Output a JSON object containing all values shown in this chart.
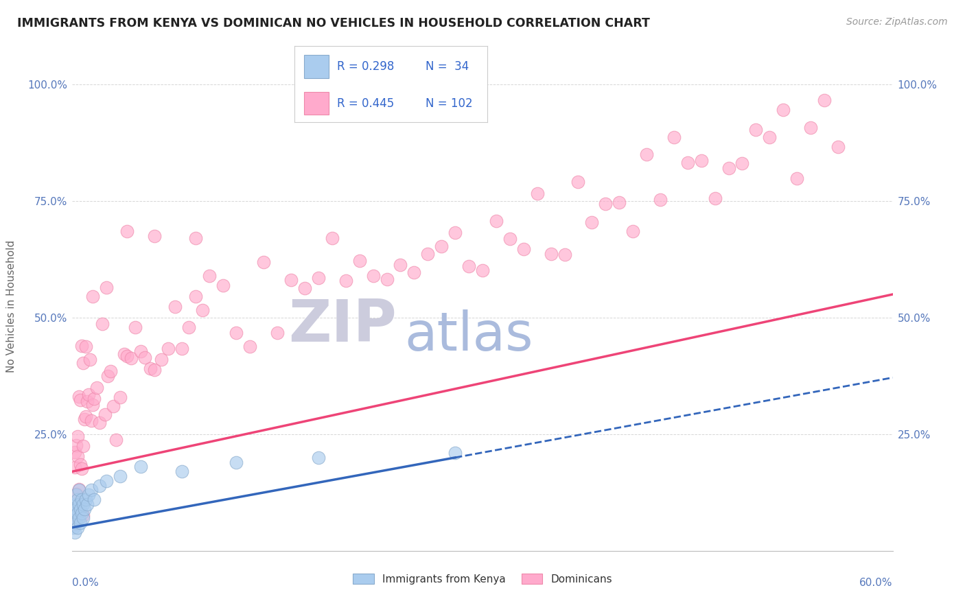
{
  "title": "IMMIGRANTS FROM KENYA VS DOMINICAN NO VEHICLES IN HOUSEHOLD CORRELATION CHART",
  "source": "Source: ZipAtlas.com",
  "ylabel": "No Vehicles in Household",
  "xlim": [
    0.0,
    0.6
  ],
  "ylim": [
    0.0,
    1.05
  ],
  "ytick_values": [
    0.0,
    0.25,
    0.5,
    0.75,
    1.0
  ],
  "ytick_labels": [
    "",
    "25.0%",
    "50.0%",
    "75.0%",
    "100.0%"
  ],
  "legend_R_kenya": "R = 0.298",
  "legend_N_kenya": "N =  34",
  "legend_R_dominican": "R = 0.445",
  "legend_N_dominican": "N = 102",
  "kenya_face_color": "#AACCEE",
  "kenya_edge_color": "#88AACC",
  "kenya_line_color": "#3366BB",
  "dominican_face_color": "#FFAACC",
  "dominican_edge_color": "#EE88AA",
  "dominican_line_color": "#EE4477",
  "watermark_zip_color": "#CCCCDD",
  "watermark_atlas_color": "#AABBDD",
  "bg_color": "#FFFFFF",
  "grid_color": "#CCCCCC",
  "title_color": "#222222",
  "axis_label_color": "#5577BB",
  "legend_text_color": "#3366CC",
  "legend_box_edge": "#CCCCCC",
  "source_color": "#999999",
  "ylabel_color": "#666666"
}
